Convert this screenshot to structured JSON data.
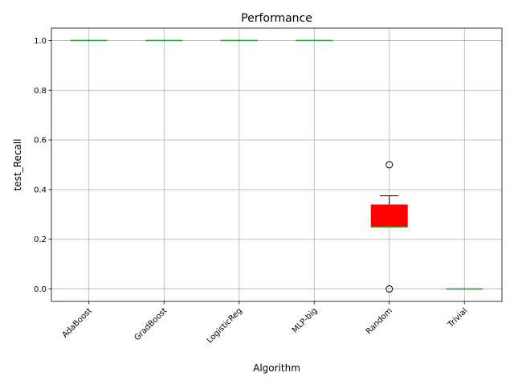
{
  "chart_data": {
    "type": "box",
    "title": "Performance",
    "xlabel": "Algorithm",
    "ylabel": "test_Recall",
    "ylim": [
      -0.05,
      1.05
    ],
    "yticks": [
      0.0,
      0.2,
      0.4,
      0.6,
      0.8,
      1.0
    ],
    "ytick_labels": [
      "0.0",
      "0.2",
      "0.4",
      "0.6",
      "0.8",
      "1.0"
    ],
    "grid": true,
    "box_color": "#ff0000",
    "median_color": "#2ca02c",
    "categories": [
      "AdaBoost",
      "GradBoost",
      "LogisticReg",
      "MLP-big",
      "Random",
      "Trivial"
    ],
    "boxes": [
      {
        "name": "AdaBoost",
        "whislo": 1.0,
        "q1": 1.0,
        "med": 1.0,
        "q3": 1.0,
        "whishi": 1.0,
        "fliers": []
      },
      {
        "name": "GradBoost",
        "whislo": 1.0,
        "q1": 1.0,
        "med": 1.0,
        "q3": 1.0,
        "whishi": 1.0,
        "fliers": []
      },
      {
        "name": "LogisticReg",
        "whislo": 1.0,
        "q1": 1.0,
        "med": 1.0,
        "q3": 1.0,
        "whishi": 1.0,
        "fliers": []
      },
      {
        "name": "MLP-big",
        "whislo": 1.0,
        "q1": 1.0,
        "med": 1.0,
        "q3": 1.0,
        "whishi": 1.0,
        "fliers": []
      },
      {
        "name": "Random",
        "whislo": 0.25,
        "q1": 0.25,
        "med": 0.25,
        "q3": 0.34,
        "whishi": 0.375,
        "fliers": [
          0.5,
          0.0
        ]
      },
      {
        "name": "Trivial",
        "whislo": 0.0,
        "q1": 0.0,
        "med": 0.0,
        "q3": 0.0,
        "whishi": 0.0,
        "fliers": []
      }
    ]
  }
}
